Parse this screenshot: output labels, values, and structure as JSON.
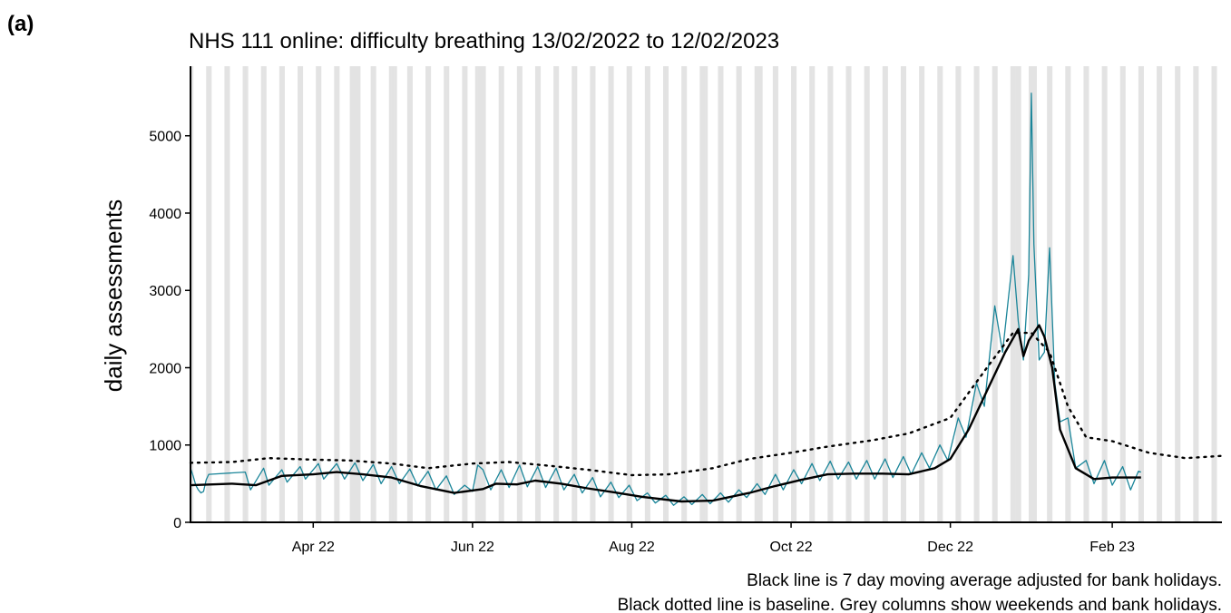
{
  "panel_label": "(a)",
  "chart_data": {
    "type": "line",
    "title": "NHS 111 online: difficulty breathing 13/02/2022 to 12/02/2023",
    "xlabel": "",
    "ylabel": "daily assessments",
    "x_start": "2022-02-13",
    "x_end": "2023-03-15",
    "ylim": [
      0,
      5900
    ],
    "y_ticks": [
      0,
      1000,
      2000,
      3000,
      4000,
      5000
    ],
    "x_ticks": [
      {
        "date": "2022-04-01",
        "label": "Apr 22"
      },
      {
        "date": "2022-06-01",
        "label": "Jun 22"
      },
      {
        "date": "2022-08-01",
        "label": "Aug 22"
      },
      {
        "date": "2022-10-01",
        "label": "Oct 22"
      },
      {
        "date": "2022-12-01",
        "label": "Dec 22"
      },
      {
        "date": "2023-02-01",
        "label": "Feb 23"
      }
    ],
    "grid": false,
    "shading": "weekends and bank holidays",
    "bank_holidays": [
      "2022-04-15",
      "2022-04-18",
      "2022-05-02",
      "2022-06-02",
      "2022-06-03",
      "2022-08-29",
      "2022-09-19",
      "2022-12-26",
      "2022-12-27",
      "2023-01-02"
    ],
    "series": [
      {
        "name": "daily assessments",
        "color": "#1a8599",
        "style": "thin",
        "points": [
          [
            "2022-02-13",
            700
          ],
          [
            "2022-02-14",
            600
          ],
          [
            "2022-02-15",
            480
          ],
          [
            "2022-02-16",
            420
          ],
          [
            "2022-02-17",
            380
          ],
          [
            "2022-02-18",
            400
          ],
          [
            "2022-02-19",
            550
          ],
          [
            "2022-02-20",
            620
          ],
          [
            "2022-03-06",
            650
          ],
          [
            "2022-03-08",
            420
          ],
          [
            "2022-03-13",
            700
          ],
          [
            "2022-03-15",
            480
          ],
          [
            "2022-03-20",
            680
          ],
          [
            "2022-03-22",
            520
          ],
          [
            "2022-03-27",
            720
          ],
          [
            "2022-03-29",
            560
          ],
          [
            "2022-04-03",
            760
          ],
          [
            "2022-04-05",
            560
          ],
          [
            "2022-04-10",
            760
          ],
          [
            "2022-04-13",
            560
          ],
          [
            "2022-04-17",
            770
          ],
          [
            "2022-04-20",
            540
          ],
          [
            "2022-04-24",
            750
          ],
          [
            "2022-04-27",
            500
          ],
          [
            "2022-05-01",
            720
          ],
          [
            "2022-05-04",
            500
          ],
          [
            "2022-05-08",
            690
          ],
          [
            "2022-05-11",
            470
          ],
          [
            "2022-05-15",
            660
          ],
          [
            "2022-05-18",
            420
          ],
          [
            "2022-05-22",
            600
          ],
          [
            "2022-05-25",
            360
          ],
          [
            "2022-05-29",
            480
          ],
          [
            "2022-06-01",
            400
          ],
          [
            "2022-06-03",
            740
          ],
          [
            "2022-06-05",
            680
          ],
          [
            "2022-06-08",
            420
          ],
          [
            "2022-06-12",
            680
          ],
          [
            "2022-06-15",
            450
          ],
          [
            "2022-06-19",
            740
          ],
          [
            "2022-06-22",
            460
          ],
          [
            "2022-06-26",
            720
          ],
          [
            "2022-06-29",
            450
          ],
          [
            "2022-07-03",
            700
          ],
          [
            "2022-07-06",
            420
          ],
          [
            "2022-07-10",
            620
          ],
          [
            "2022-07-13",
            380
          ],
          [
            "2022-07-17",
            580
          ],
          [
            "2022-07-20",
            330
          ],
          [
            "2022-07-24",
            520
          ],
          [
            "2022-07-27",
            320
          ],
          [
            "2022-07-31",
            480
          ],
          [
            "2022-08-03",
            280
          ],
          [
            "2022-08-07",
            380
          ],
          [
            "2022-08-10",
            250
          ],
          [
            "2022-08-14",
            350
          ],
          [
            "2022-08-17",
            220
          ],
          [
            "2022-08-21",
            330
          ],
          [
            "2022-08-24",
            230
          ],
          [
            "2022-08-28",
            360
          ],
          [
            "2022-08-31",
            240
          ],
          [
            "2022-09-04",
            380
          ],
          [
            "2022-09-07",
            260
          ],
          [
            "2022-09-11",
            420
          ],
          [
            "2022-09-14",
            320
          ],
          [
            "2022-09-18",
            500
          ],
          [
            "2022-09-21",
            360
          ],
          [
            "2022-09-25",
            620
          ],
          [
            "2022-09-28",
            420
          ],
          [
            "2022-10-02",
            680
          ],
          [
            "2022-10-05",
            500
          ],
          [
            "2022-10-09",
            760
          ],
          [
            "2022-10-12",
            540
          ],
          [
            "2022-10-16",
            790
          ],
          [
            "2022-10-19",
            560
          ],
          [
            "2022-10-23",
            780
          ],
          [
            "2022-10-26",
            560
          ],
          [
            "2022-10-30",
            800
          ],
          [
            "2022-11-02",
            560
          ],
          [
            "2022-11-06",
            820
          ],
          [
            "2022-11-09",
            580
          ],
          [
            "2022-11-13",
            850
          ],
          [
            "2022-11-16",
            620
          ],
          [
            "2022-11-20",
            900
          ],
          [
            "2022-11-23",
            700
          ],
          [
            "2022-11-27",
            1000
          ],
          [
            "2022-11-30",
            800
          ],
          [
            "2022-12-04",
            1350
          ],
          [
            "2022-12-07",
            1100
          ],
          [
            "2022-12-11",
            1800
          ],
          [
            "2022-12-14",
            1500
          ],
          [
            "2022-12-18",
            2800
          ],
          [
            "2022-12-21",
            2200
          ],
          [
            "2022-12-25",
            3450
          ],
          [
            "2022-12-27",
            2600
          ],
          [
            "2022-12-29",
            2100
          ],
          [
            "2022-12-31",
            3200
          ],
          [
            "2023-01-01",
            5550
          ],
          [
            "2023-01-02",
            3600
          ],
          [
            "2023-01-04",
            2100
          ],
          [
            "2023-01-06",
            2200
          ],
          [
            "2023-01-08",
            3550
          ],
          [
            "2023-01-10",
            1800
          ],
          [
            "2023-01-12",
            1300
          ],
          [
            "2023-01-15",
            1350
          ],
          [
            "2023-01-18",
            700
          ],
          [
            "2023-01-22",
            800
          ],
          [
            "2023-01-25",
            500
          ],
          [
            "2023-01-29",
            800
          ],
          [
            "2023-02-01",
            480
          ],
          [
            "2023-02-05",
            720
          ],
          [
            "2023-02-08",
            420
          ],
          [
            "2023-02-11",
            660
          ],
          [
            "2023-02-12",
            650
          ]
        ]
      },
      {
        "name": "7 day moving average",
        "color": "#000000",
        "style": "solid",
        "points": [
          [
            "2022-02-13",
            480
          ],
          [
            "2022-03-01",
            500
          ],
          [
            "2022-03-10",
            480
          ],
          [
            "2022-03-20",
            600
          ],
          [
            "2022-04-01",
            620
          ],
          [
            "2022-04-10",
            650
          ],
          [
            "2022-04-20",
            620
          ],
          [
            "2022-05-01",
            580
          ],
          [
            "2022-05-12",
            470
          ],
          [
            "2022-05-25",
            380
          ],
          [
            "2022-06-05",
            430
          ],
          [
            "2022-06-10",
            500
          ],
          [
            "2022-06-18",
            490
          ],
          [
            "2022-06-25",
            540
          ],
          [
            "2022-07-05",
            500
          ],
          [
            "2022-07-15",
            440
          ],
          [
            "2022-07-25",
            390
          ],
          [
            "2022-08-05",
            330
          ],
          [
            "2022-08-20",
            270
          ],
          [
            "2022-09-01",
            280
          ],
          [
            "2022-09-15",
            380
          ],
          [
            "2022-09-25",
            470
          ],
          [
            "2022-10-05",
            550
          ],
          [
            "2022-10-15",
            620
          ],
          [
            "2022-10-25",
            630
          ],
          [
            "2022-11-05",
            630
          ],
          [
            "2022-11-15",
            620
          ],
          [
            "2022-11-25",
            700
          ],
          [
            "2022-12-01",
            820
          ],
          [
            "2022-12-08",
            1200
          ],
          [
            "2022-12-15",
            1700
          ],
          [
            "2022-12-22",
            2200
          ],
          [
            "2022-12-27",
            2500
          ],
          [
            "2022-12-29",
            2150
          ],
          [
            "2022-12-31",
            2350
          ],
          [
            "2023-01-02",
            2450
          ],
          [
            "2023-01-04",
            2550
          ],
          [
            "2023-01-06",
            2400
          ],
          [
            "2023-01-09",
            2000
          ],
          [
            "2023-01-12",
            1200
          ],
          [
            "2023-01-18",
            700
          ],
          [
            "2023-01-25",
            560
          ],
          [
            "2023-02-01",
            580
          ],
          [
            "2023-02-12",
            580
          ]
        ]
      },
      {
        "name": "baseline",
        "color": "#000000",
        "style": "dotted",
        "points": [
          [
            "2022-02-13",
            770
          ],
          [
            "2022-03-01",
            780
          ],
          [
            "2022-03-15",
            830
          ],
          [
            "2022-04-01",
            810
          ],
          [
            "2022-04-15",
            800
          ],
          [
            "2022-05-01",
            760
          ],
          [
            "2022-05-15",
            700
          ],
          [
            "2022-06-01",
            760
          ],
          [
            "2022-06-15",
            780
          ],
          [
            "2022-07-01",
            730
          ],
          [
            "2022-07-15",
            680
          ],
          [
            "2022-08-01",
            610
          ],
          [
            "2022-08-15",
            620
          ],
          [
            "2022-09-01",
            700
          ],
          [
            "2022-09-15",
            820
          ],
          [
            "2022-10-01",
            900
          ],
          [
            "2022-10-15",
            980
          ],
          [
            "2022-11-01",
            1060
          ],
          [
            "2022-11-15",
            1150
          ],
          [
            "2022-12-01",
            1350
          ],
          [
            "2022-12-15",
            2000
          ],
          [
            "2022-12-25",
            2450
          ],
          [
            "2023-01-01",
            2450
          ],
          [
            "2023-01-08",
            2200
          ],
          [
            "2023-01-15",
            1500
          ],
          [
            "2023-01-22",
            1100
          ],
          [
            "2023-02-01",
            1050
          ],
          [
            "2023-02-15",
            900
          ],
          [
            "2023-03-01",
            830
          ],
          [
            "2023-03-15",
            860
          ]
        ]
      }
    ],
    "annotations": [
      "Black line is 7 day moving average adjusted for bank holidays.",
      "Black dotted line is baseline. Grey columns show weekends and bank holidays."
    ]
  }
}
